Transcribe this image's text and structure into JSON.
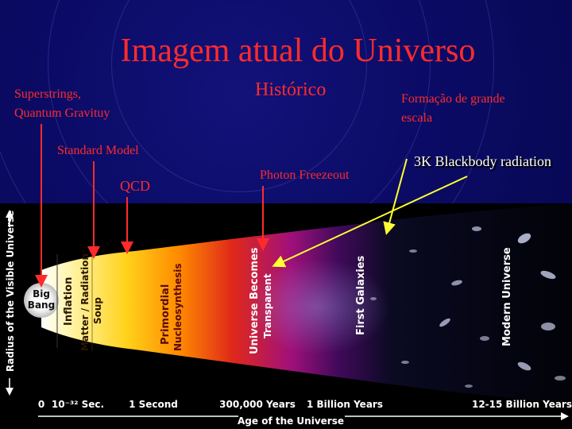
{
  "slide": {
    "title": "Imagem atual do Universo",
    "labels": {
      "superstrings": "Superstrings,",
      "quantum_gravity": "Quantum Gravituy",
      "historico": "Histórico",
      "formacao_1": "Formação de grande",
      "formacao_2": "escala",
      "standard_model": "Standard Model",
      "photon_freezeout": "Photon Freezeout",
      "blackbody": "3K Blackbody radiation",
      "qcd": "QCD"
    }
  },
  "figure": {
    "y_axis_label": "Radius of the Visible Universe",
    "x_axis_label": "Age of the Universe",
    "x_ticks": [
      "0",
      "10⁻³² Sec.",
      "1 Second",
      "300,000 Years",
      "1 Billion Years",
      "12-15 Billion Years"
    ],
    "eras": {
      "big_bang_1": "Big",
      "big_bang_2": "Bang",
      "inflation": "Inflation",
      "matter_radiation_1": "Matter / Radiation",
      "matter_radiation_2": "Soup",
      "primordial_1": "Primordial",
      "primordial_2": "Nucleosynthesis",
      "transparent_1": "Universe Becomes",
      "transparent_2": "Transparent",
      "first_galaxies": "First Galaxies",
      "modern_universe": "Modern Universe"
    }
  },
  "colors": {
    "title": "#ff2b2b",
    "arrow": "#ffff33",
    "background": "#0b0b66"
  }
}
